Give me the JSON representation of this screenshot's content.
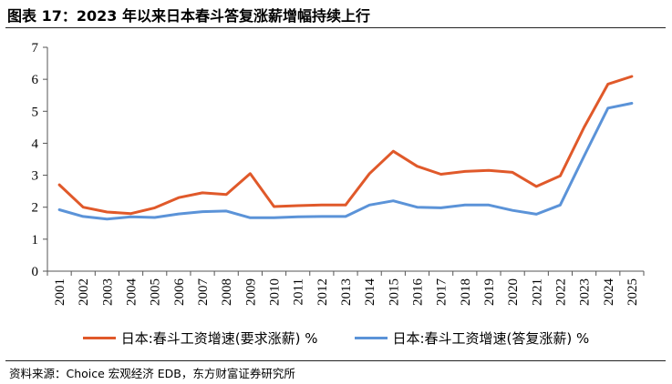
{
  "title": "图表 17：2023 年以来日本春斗答复涨薪增幅持续上行",
  "source": "资料来源：Choice 宏观经济 EDB，东方财富证券研究所",
  "chart_data": {
    "type": "line",
    "x": [
      "2001",
      "2002",
      "2003",
      "2004",
      "2005",
      "2006",
      "2007",
      "2008",
      "2009",
      "2010",
      "2011",
      "2012",
      "2013",
      "2014",
      "2015",
      "2016",
      "2017",
      "2018",
      "2019",
      "2020",
      "2021",
      "2022",
      "2023",
      "2024",
      "2025"
    ],
    "series": [
      {
        "name": "日本:春斗工资增速(要求涨薪) %",
        "color": "#e0592a",
        "values": [
          2.7,
          2.0,
          1.85,
          1.8,
          1.98,
          2.3,
          2.45,
          2.4,
          3.05,
          2.02,
          2.05,
          2.07,
          2.07,
          3.05,
          3.75,
          3.28,
          3.03,
          3.12,
          3.15,
          3.09,
          2.65,
          2.98,
          4.5,
          5.85,
          6.09
        ]
      },
      {
        "name": "日本:春斗工资增速(答复涨薪) %",
        "color": "#5b93d8",
        "values": [
          1.92,
          1.71,
          1.63,
          1.7,
          1.68,
          1.79,
          1.86,
          1.88,
          1.67,
          1.67,
          1.7,
          1.71,
          1.71,
          2.07,
          2.2,
          2.0,
          1.98,
          2.07,
          2.07,
          1.9,
          1.78,
          2.07,
          3.6,
          5.1,
          5.25
        ]
      }
    ],
    "ylim": [
      0,
      7
    ],
    "yticks": [
      0,
      1,
      2,
      3,
      4,
      5,
      6,
      7
    ],
    "grid": false,
    "legend_position": "bottom"
  }
}
